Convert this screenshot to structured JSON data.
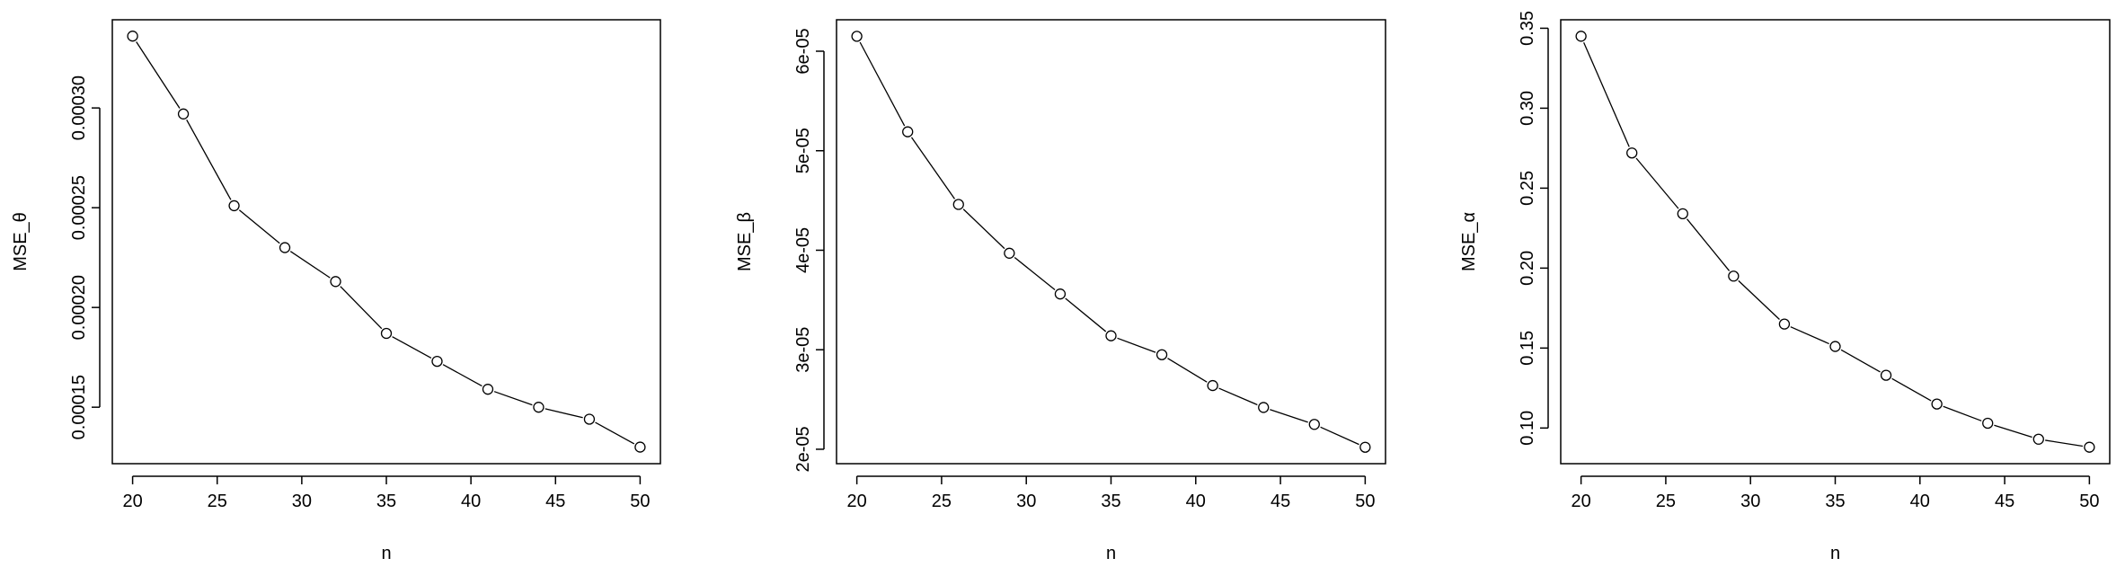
{
  "chart_data": [
    {
      "type": "line",
      "xlabel": "n",
      "ylabel": "MSE_θ",
      "x": [
        20,
        23,
        26,
        29,
        32,
        35,
        38,
        41,
        44,
        47,
        50
      ],
      "y": [
        0.000336,
        0.000297,
        0.000251,
        0.00023,
        0.000213,
        0.000187,
        0.000173,
        0.000159,
        0.00015,
        0.000144,
        0.00013
      ],
      "xticks": [
        20,
        25,
        30,
        35,
        40,
        45,
        50
      ],
      "xtick_labels": [
        "20",
        "25",
        "30",
        "35",
        "40",
        "45",
        "50"
      ],
      "yticks": [
        0.00015,
        0.0002,
        0.00025,
        0.0003
      ],
      "ytick_labels": [
        "0.00015",
        "0.00020",
        "0.00025",
        "0.00030"
      ],
      "xlim": [
        18.8,
        51.2
      ],
      "ylim": [
        0.0001217,
        0.0003442
      ],
      "marker": "open-circle",
      "grid": false,
      "legend": "none"
    },
    {
      "type": "line",
      "xlabel": "n",
      "ylabel": "MSE_β",
      "x": [
        20,
        23,
        26,
        29,
        32,
        35,
        38,
        41,
        44,
        47,
        50
      ],
      "y": [
        6.15e-05,
        5.19e-05,
        4.46e-05,
        3.97e-05,
        3.56e-05,
        3.14e-05,
        2.95e-05,
        2.64e-05,
        2.42e-05,
        2.25e-05,
        2.02e-05
      ],
      "xticks": [
        20,
        25,
        30,
        35,
        40,
        45,
        50
      ],
      "xtick_labels": [
        "20",
        "25",
        "30",
        "35",
        "40",
        "45",
        "50"
      ],
      "yticks": [
        2e-05,
        3e-05,
        4e-05,
        5e-05,
        6e-05
      ],
      "ytick_labels": [
        "2e-05",
        "3e-05",
        "4e-05",
        "5e-05",
        "6e-05"
      ],
      "xlim": [
        18.8,
        51.2
      ],
      "ylim": [
        1.855e-05,
        6.316e-05
      ],
      "marker": "open-circle",
      "grid": false,
      "legend": "none"
    },
    {
      "type": "line",
      "xlabel": "n",
      "ylabel": "MSE_α",
      "x": [
        20,
        23,
        26,
        29,
        32,
        35,
        38,
        41,
        44,
        47,
        50
      ],
      "y": [
        0.345,
        0.272,
        0.234,
        0.195,
        0.165,
        0.151,
        0.133,
        0.115,
        0.103,
        0.093,
        0.088
      ],
      "xticks": [
        20,
        25,
        30,
        35,
        40,
        45,
        50
      ],
      "xtick_labels": [
        "20",
        "25",
        "30",
        "35",
        "40",
        "45",
        "50"
      ],
      "yticks": [
        0.1,
        0.15,
        0.2,
        0.25,
        0.3,
        0.35
      ],
      "ytick_labels": [
        "0.10",
        "0.15",
        "0.20",
        "0.25",
        "0.30",
        "0.35"
      ],
      "xlim": [
        18.8,
        51.2
      ],
      "ylim": [
        0.0777,
        0.3553
      ],
      "marker": "open-circle",
      "grid": false,
      "legend": "none"
    }
  ]
}
